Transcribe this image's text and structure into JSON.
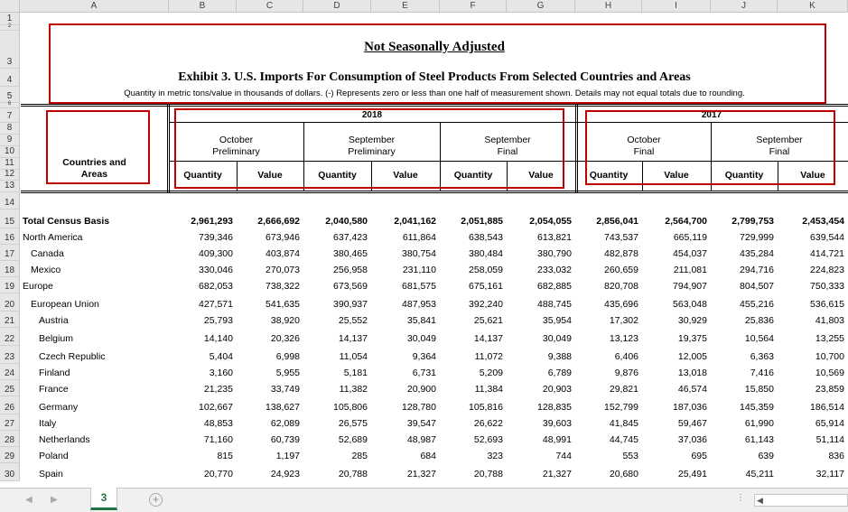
{
  "columns": [
    "A",
    "B",
    "C",
    "D",
    "E",
    "F",
    "G",
    "H",
    "I",
    "J",
    "K"
  ],
  "title1": "Not Seasonally Adjusted",
  "title2": "Exhibit 3.  U.S. Imports For Consumption of Steel Products From Selected Countries and Areas",
  "note": "Quantity in metric tons/value in thousands of dollars.  (-) Represents zero or less than one half of measurement shown.  Details may not equal totals due to rounding.",
  "header": {
    "year_2018": "2018",
    "year_2017": "2017",
    "countries_line1": "Countries and",
    "countries_line2": "Areas",
    "groups": [
      {
        "line1": "October",
        "line2": "Preliminary"
      },
      {
        "line1": "September",
        "line2": "Preliminary"
      },
      {
        "line1": "September",
        "line2": "Final"
      },
      {
        "line1": "October",
        "line2": "Final"
      },
      {
        "line1": "September",
        "line2": "Final"
      }
    ],
    "quantity": "Quantity",
    "value": "Value"
  },
  "header_row_numbers": [
    "1",
    "2",
    "3",
    "4",
    "5",
    "6",
    "7",
    "8",
    "9",
    "10",
    "11",
    "12",
    "13",
    "14"
  ],
  "rows": [
    {
      "num": "15",
      "label": "Total Census Basis",
      "bold": true,
      "indent": 0,
      "values": [
        "2,961,293",
        "2,666,692",
        "2,040,580",
        "2,041,162",
        "2,051,885",
        "2,054,055",
        "2,856,041",
        "2,564,700",
        "2,799,753",
        "2,453,454"
      ]
    },
    {
      "num": "16",
      "label": "North America",
      "indent": 0,
      "values": [
        "739,346",
        "673,946",
        "637,423",
        "611,864",
        "638,543",
        "613,821",
        "743,537",
        "665,119",
        "729,999",
        "639,544"
      ]
    },
    {
      "num": "17",
      "label": "Canada",
      "indent": 1,
      "values": [
        "409,300",
        "403,874",
        "380,465",
        "380,754",
        "380,484",
        "380,790",
        "482,878",
        "454,037",
        "435,284",
        "414,721"
      ]
    },
    {
      "num": "18",
      "label": "Mexico",
      "indent": 1,
      "values": [
        "330,046",
        "270,073",
        "256,958",
        "231,110",
        "258,059",
        "233,032",
        "260,659",
        "211,081",
        "294,716",
        "224,823"
      ]
    },
    {
      "num": "19",
      "label": "Europe",
      "indent": 0,
      "values": [
        "682,053",
        "738,322",
        "673,569",
        "681,575",
        "675,161",
        "682,885",
        "820,708",
        "794,907",
        "804,507",
        "750,333"
      ]
    },
    {
      "num": "20",
      "label": "European Union",
      "indent": 1,
      "values": [
        "427,571",
        "541,635",
        "390,937",
        "487,953",
        "392,240",
        "488,745",
        "435,696",
        "563,048",
        "455,216",
        "536,615"
      ]
    },
    {
      "num": "21",
      "label": "Austria",
      "indent": 2,
      "values": [
        "25,793",
        "38,920",
        "25,552",
        "35,841",
        "25,621",
        "35,954",
        "17,302",
        "30,929",
        "25,836",
        "41,803"
      ]
    },
    {
      "num": "22",
      "label": "Belgium",
      "indent": 2,
      "values": [
        "14,140",
        "20,326",
        "14,137",
        "30,049",
        "14,137",
        "30,049",
        "13,123",
        "19,375",
        "10,564",
        "13,255"
      ]
    },
    {
      "num": "23",
      "label": "Czech Republic",
      "indent": 2,
      "values": [
        "5,404",
        "6,998",
        "11,054",
        "9,364",
        "11,072",
        "9,388",
        "6,406",
        "12,005",
        "6,363",
        "10,700"
      ]
    },
    {
      "num": "24",
      "label": "Finland",
      "indent": 2,
      "values": [
        "3,160",
        "5,955",
        "5,181",
        "6,731",
        "5,209",
        "6,789",
        "9,876",
        "13,018",
        "7,416",
        "10,569"
      ]
    },
    {
      "num": "25",
      "label": "France",
      "indent": 2,
      "values": [
        "21,235",
        "33,749",
        "11,382",
        "20,900",
        "11,384",
        "20,903",
        "29,821",
        "46,574",
        "15,850",
        "23,859"
      ]
    },
    {
      "num": "26",
      "label": "Germany",
      "indent": 2,
      "values": [
        "102,667",
        "138,627",
        "105,806",
        "128,780",
        "105,816",
        "128,835",
        "152,799",
        "187,036",
        "145,359",
        "186,514"
      ]
    },
    {
      "num": "27",
      "label": "Italy",
      "indent": 2,
      "values": [
        "48,853",
        "62,089",
        "26,575",
        "39,547",
        "26,622",
        "39,603",
        "41,845",
        "59,467",
        "61,990",
        "65,914"
      ]
    },
    {
      "num": "28",
      "label": "Netherlands",
      "indent": 2,
      "values": [
        "71,160",
        "60,739",
        "52,689",
        "48,987",
        "52,693",
        "48,991",
        "44,745",
        "37,036",
        "61,143",
        "51,114"
      ]
    },
    {
      "num": "29",
      "label": "Poland",
      "indent": 2,
      "values": [
        "815",
        "1,197",
        "285",
        "684",
        "323",
        "744",
        "553",
        "695",
        "639",
        "836"
      ]
    },
    {
      "num": "30",
      "label": "Spain",
      "indent": 2,
      "values": [
        "20,770",
        "24,923",
        "20,788",
        "21,327",
        "20,788",
        "21,327",
        "20,680",
        "25,491",
        "45,211",
        "32,117"
      ]
    }
  ],
  "sheet_tab": "3",
  "add_sheet": "+"
}
